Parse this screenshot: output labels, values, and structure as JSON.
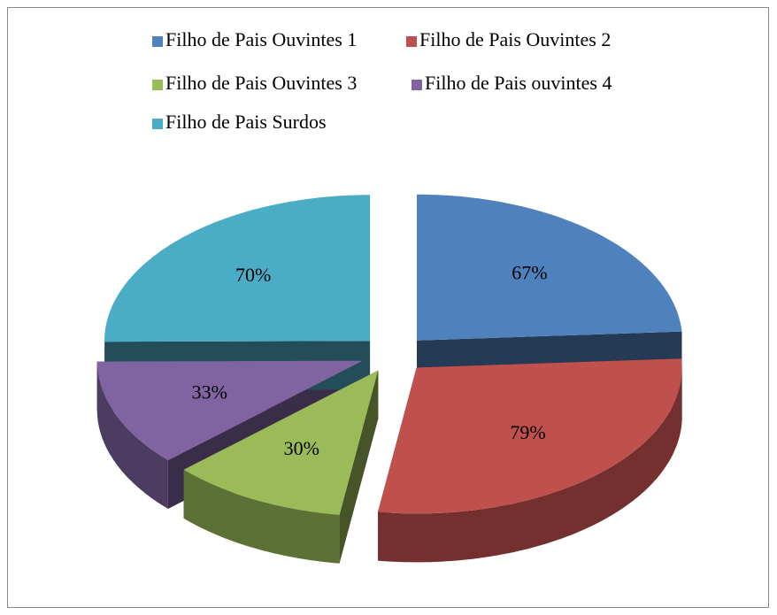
{
  "chart_data": {
    "type": "pie",
    "categories": [
      "Filho de Pais Ouvintes 1",
      "Filho de Pais Ouvintes 2",
      "Filho de Pais Ouvintes 3",
      "Filho de Pais ouvintes 4",
      "Filho de Pais Surdos"
    ],
    "values": [
      67,
      79,
      30,
      33,
      70
    ],
    "value_labels": [
      "67%",
      "79%",
      "30%",
      "33%",
      "70%"
    ],
    "colors": [
      "#4f81bd",
      "#c0504d",
      "#9bbb59",
      "#8064a2",
      "#4bacc6"
    ],
    "legend": "top"
  }
}
